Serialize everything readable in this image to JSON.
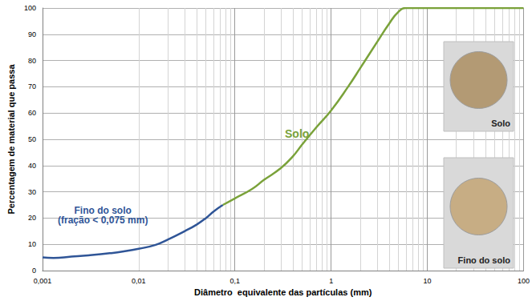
{
  "chart_data": {
    "type": "line",
    "x_label": "Diâmetro  equivalente das partículas (mm)",
    "y_label": "Percentagem de material que passa",
    "log": "x",
    "grid": true,
    "xlim": [
      0.001,
      100
    ],
    "xticks": [
      {
        "value": 0.001,
        "label": "0,001"
      },
      {
        "value": 0.01,
        "label": "0,01"
      },
      {
        "value": 0.1,
        "label": "0,1"
      },
      1,
      10,
      100
    ],
    "ylim": [
      0,
      100
    ],
    "yticks": [
      0,
      10,
      20,
      30,
      40,
      50,
      60,
      70,
      80,
      90,
      100
    ],
    "series": [
      {
        "name": "Fino do solo\n(fração < 0,075 mm)",
        "color": "#2f5597",
        "x": [
          0.001,
          0.0013,
          0.002,
          0.003,
          0.005,
          0.007,
          0.01,
          0.015,
          0.02,
          0.03,
          0.04,
          0.05,
          0.06,
          0.075
        ],
        "values": [
          5,
          4.8,
          5.3,
          5.8,
          6.6,
          7.3,
          8.3,
          9.8,
          11.8,
          15,
          17.5,
          20,
          22.5,
          25
        ]
      },
      {
        "name": "Solo",
        "color": "#7aa23a",
        "x": [
          0.075,
          0.1,
          0.15,
          0.2,
          0.3,
          0.4,
          0.5,
          0.7,
          1,
          1.5,
          2,
          3,
          4,
          5,
          6,
          10,
          30,
          100
        ],
        "values": [
          25,
          27.5,
          31,
          34.5,
          39,
          43.5,
          48,
          54.5,
          61,
          70,
          77,
          87,
          94,
          98.5,
          100,
          100,
          100,
          100
        ]
      }
    ],
    "annotations": [
      "Solo",
      "Fino do solo"
    ]
  }
}
